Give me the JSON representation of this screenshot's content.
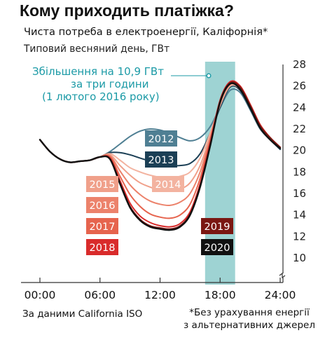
{
  "chart_data": {
    "type": "line",
    "title": "Кому приходить платіжка?",
    "subtitle": "Чиста потреба в електроенергії, Каліфорнія*",
    "ylabel": "Типовий весняний день, ГВт",
    "xlim": [
      0,
      24
    ],
    "ylim": [
      10,
      28
    ],
    "x_tick_labels": [
      "00:00",
      "06:00",
      "12:00",
      "18:00",
      "24:00"
    ],
    "x_tick_values": [
      0,
      6,
      12,
      18,
      24
    ],
    "y_ticks": [
      10,
      12,
      14,
      16,
      18,
      20,
      22,
      24,
      26,
      28
    ],
    "grid": false,
    "highlight": {
      "x_start": 16.5,
      "x_end": 19.5,
      "color": "#9ed3d3"
    },
    "annotation": {
      "lines": [
        "Збільшення на 10,9 ГВт",
        "за три години",
        "(1 лютого 2016 року)"
      ],
      "color": "#1b9aa6"
    },
    "x": [
      0,
      1,
      2,
      3,
      4,
      5,
      6,
      7,
      8,
      9,
      10,
      11,
      12,
      13,
      14,
      15,
      16,
      17,
      18,
      19,
      20,
      21,
      22,
      23,
      24
    ],
    "series": [
      {
        "name": "2012",
        "color": "#4f7f93",
        "values": [
          21.0,
          19.9,
          19.2,
          18.9,
          19.0,
          19.1,
          19.4,
          19.9,
          20.6,
          21.3,
          21.8,
          22.0,
          21.9,
          21.6,
          21.2,
          20.9,
          21.2,
          22.2,
          24.0,
          25.6,
          25.4,
          23.8,
          22.0,
          21.0,
          20.2
        ]
      },
      {
        "name": "2013",
        "color": "#1b3f55",
        "values": [
          21.0,
          19.9,
          19.2,
          18.9,
          19.0,
          19.1,
          19.4,
          19.8,
          19.8,
          19.6,
          19.3,
          19.0,
          18.8,
          18.6,
          18.6,
          18.8,
          19.7,
          21.6,
          24.0,
          25.9,
          25.6,
          23.9,
          22.1,
          21.0,
          20.1
        ]
      },
      {
        "name": "2014",
        "color": "#f3b3a0",
        "values": [
          21.0,
          19.9,
          19.2,
          18.9,
          19.0,
          19.1,
          19.4,
          19.7,
          19.1,
          18.4,
          18.0,
          17.7,
          17.5,
          17.4,
          17.6,
          18.0,
          19.3,
          21.6,
          24.2,
          26.0,
          25.7,
          24.1,
          22.2,
          21.1,
          20.2
        ]
      },
      {
        "name": "2015",
        "color": "#f0a08a",
        "values": [
          21.0,
          19.9,
          19.2,
          18.9,
          19.0,
          19.1,
          19.4,
          19.6,
          18.6,
          17.7,
          17.0,
          16.6,
          16.3,
          16.2,
          16.4,
          17.0,
          18.6,
          21.3,
          24.3,
          26.1,
          25.8,
          24.1,
          22.3,
          21.1,
          20.2
        ]
      },
      {
        "name": "2016",
        "color": "#ec826b",
        "values": [
          21.0,
          19.9,
          19.2,
          18.9,
          19.0,
          19.1,
          19.4,
          19.5,
          18.1,
          16.8,
          15.9,
          15.3,
          15.0,
          14.9,
          15.2,
          16.0,
          18.0,
          21.1,
          24.5,
          26.2,
          25.9,
          24.2,
          22.3,
          21.1,
          20.2
        ]
      },
      {
        "name": "2017",
        "color": "#e6644e",
        "values": [
          21.0,
          19.9,
          19.2,
          18.9,
          19.0,
          19.1,
          19.4,
          19.4,
          17.6,
          15.9,
          14.8,
          14.1,
          13.8,
          13.7,
          14.0,
          15.0,
          17.4,
          20.9,
          24.6,
          26.3,
          26.0,
          24.3,
          22.4,
          21.2,
          20.3
        ]
      },
      {
        "name": "2018",
        "color": "#d92b2b",
        "values": [
          21.0,
          19.9,
          19.2,
          18.9,
          19.0,
          19.1,
          19.4,
          19.3,
          17.2,
          15.1,
          13.9,
          13.3,
          13.0,
          12.9,
          13.2,
          14.3,
          16.9,
          20.7,
          24.7,
          26.4,
          26.0,
          24.3,
          22.4,
          21.2,
          20.3
        ]
      },
      {
        "name": "2019",
        "color": "#7a1712",
        "values": [
          21.0,
          19.9,
          19.2,
          18.9,
          19.0,
          19.1,
          19.4,
          19.2,
          17.0,
          14.8,
          13.6,
          13.0,
          12.8,
          12.7,
          13.0,
          14.1,
          16.7,
          20.5,
          24.6,
          26.3,
          25.9,
          24.2,
          22.3,
          21.2,
          20.3
        ]
      },
      {
        "name": "2020",
        "color": "#111111",
        "values": [
          21.0,
          19.9,
          19.2,
          18.9,
          19.0,
          19.1,
          19.4,
          19.2,
          16.9,
          14.7,
          13.5,
          12.9,
          12.7,
          12.6,
          12.9,
          14.0,
          16.6,
          20.4,
          24.5,
          26.2,
          25.7,
          24.0,
          22.1,
          21.0,
          20.2
        ]
      }
    ],
    "series_labels": [
      {
        "name": "2012",
        "bg": "#4f7f93",
        "fg": "#ffffff"
      },
      {
        "name": "2013",
        "bg": "#1b3f55",
        "fg": "#ffffff"
      },
      {
        "name": "2014",
        "bg": "#f3b3a0",
        "fg": "#ffffff"
      },
      {
        "name": "2015",
        "bg": "#f0a08a",
        "fg": "#ffffff"
      },
      {
        "name": "2016",
        "bg": "#ec826b",
        "fg": "#ffffff"
      },
      {
        "name": "2017",
        "bg": "#e6644e",
        "fg": "#ffffff"
      },
      {
        "name": "2018",
        "bg": "#d92b2b",
        "fg": "#ffffff"
      },
      {
        "name": "2019",
        "bg": "#7a1712",
        "fg": "#ffffff"
      },
      {
        "name": "2020",
        "bg": "#111111",
        "fg": "#ffffff"
      }
    ]
  },
  "footer": {
    "source": "За даними California ISO",
    "footnote_line1": "*Без урахування енергії",
    "footnote_line2": "з альтернативних джерел"
  }
}
